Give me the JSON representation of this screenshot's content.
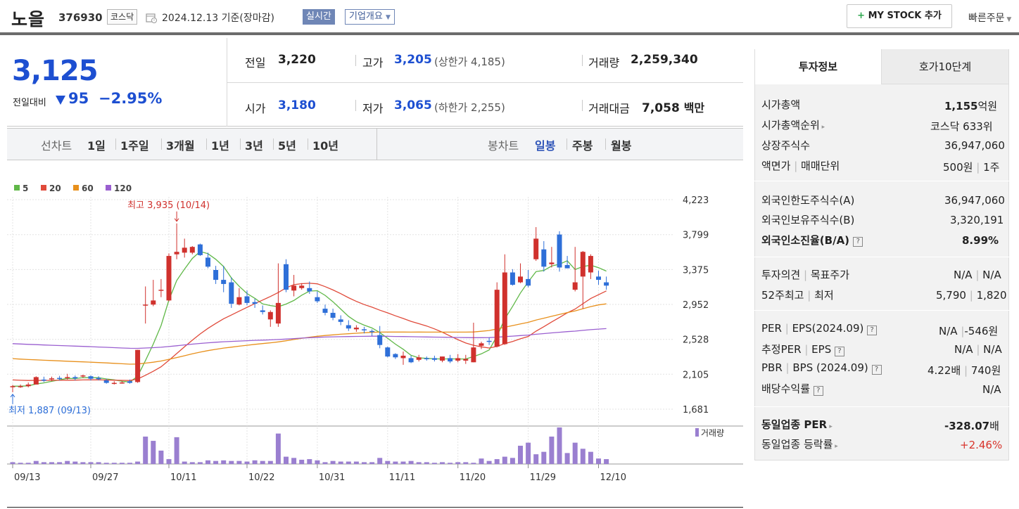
{
  "header": {
    "name": "노을",
    "code": "376930",
    "market": "코스닥",
    "date": "2024.12.13",
    "basis": "기준(장마감)",
    "realtime": "실시간",
    "corp_info": "기업개요",
    "my_stock": "MY STOCK 추가",
    "quick_order": "빠른주문"
  },
  "summary": {
    "price": "3,125",
    "change_label": "전일대비",
    "change": "95",
    "change_pct": "−2.95%",
    "prev_label": "전일",
    "prev": "3,220",
    "open_label": "시가",
    "open": "3,180",
    "high_label": "고가",
    "high": "3,205",
    "upper_limit": "(상한가 4,185)",
    "low_label": "저가",
    "low": "3,065",
    "lower_limit": "(하한가 2,255)",
    "volume_label": "거래량",
    "volume": "2,259,340",
    "amount_label": "거래대금",
    "amount": "7,058",
    "amount_unit": "백만"
  },
  "chart_tabs": {
    "line_label": "선차트",
    "line_periods": [
      "1일",
      "1주일",
      "3개월",
      "1년",
      "3년",
      "5년",
      "10년"
    ],
    "candle_label": "봉차트",
    "candle_periods": [
      "일봉",
      "주봉",
      "월봉"
    ]
  },
  "chart_data": {
    "type": "candlestick",
    "ma_legend": [
      {
        "name": "5",
        "color": "#60b848"
      },
      {
        "name": "20",
        "color": "#e04a3a"
      },
      {
        "name": "60",
        "color": "#e8901c"
      },
      {
        "name": "120",
        "color": "#9a5fd0"
      }
    ],
    "y_ticks": [
      "4,223",
      "3,799",
      "3,375",
      "2,952",
      "2,528",
      "2,105",
      "1,681"
    ],
    "ylim": [
      1681,
      4223
    ],
    "x_ticks": [
      "09/13",
      "09/27",
      "10/11",
      "10/22",
      "10/31",
      "11/11",
      "11/20",
      "11/29",
      "12/10"
    ],
    "x_tick_index": [
      0,
      10,
      20,
      30,
      39,
      48,
      57,
      66,
      75
    ],
    "high_annotation": "최고 3,935 (10/14)",
    "low_annotation": "최저 1,887 (09/13)",
    "volume_label": "거래량",
    "candles": [
      [
        1950,
        1975,
        1887,
        1960
      ],
      [
        1960,
        1980,
        1940,
        1960
      ],
      [
        1960,
        2005,
        1945,
        1980
      ],
      [
        1980,
        2080,
        1980,
        2070
      ],
      [
        2040,
        2075,
        2010,
        2030
      ],
      [
        2045,
        2075,
        2020,
        2055
      ],
      [
        2060,
        2085,
        2030,
        2050
      ],
      [
        2060,
        2110,
        2040,
        2070
      ],
      [
        2070,
        2090,
        2030,
        2055
      ],
      [
        2080,
        2100,
        2060,
        2090
      ],
      [
        2080,
        2090,
        2030,
        2050
      ],
      [
        2060,
        2080,
        2030,
        2045
      ],
      [
        2030,
        2050,
        1990,
        2000
      ],
      [
        2000,
        2020,
        1980,
        2000
      ],
      [
        2000,
        2020,
        1990,
        2005
      ],
      [
        2020,
        2040,
        1990,
        2000
      ],
      [
        2010,
        2400,
        2000,
        2400
      ],
      [
        2950,
        3170,
        2720,
        2950
      ],
      [
        2950,
        3250,
        2930,
        3000
      ],
      [
        3120,
        3260,
        3040,
        3130
      ],
      [
        3000,
        3570,
        2990,
        3540
      ],
      [
        3560,
        3935,
        3500,
        3590
      ],
      [
        3580,
        3750,
        3520,
        3640
      ],
      [
        3580,
        3660,
        3560,
        3650
      ],
      [
        3680,
        3690,
        3540,
        3550
      ],
      [
        3520,
        3580,
        3390,
        3410
      ],
      [
        3370,
        3420,
        3200,
        3250
      ],
      [
        3250,
        3420,
        3100,
        3200
      ],
      [
        3220,
        3280,
        2910,
        2960
      ],
      [
        2950,
        3150,
        2940,
        3040
      ],
      [
        3050,
        3120,
        2940,
        2970
      ],
      [
        2980,
        3020,
        2910,
        2960
      ],
      [
        2880,
        2940,
        2830,
        2860
      ],
      [
        2770,
        2880,
        2680,
        2860
      ],
      [
        2720,
        3450,
        2680,
        2970
      ],
      [
        3440,
        3500,
        3100,
        3130
      ],
      [
        3120,
        3310,
        3050,
        3180
      ],
      [
        3150,
        3210,
        3130,
        3180
      ],
      [
        3150,
        3230,
        3080,
        3110
      ],
      [
        3040,
        3110,
        2970,
        2990
      ],
      [
        2900,
        2950,
        2820,
        2850
      ],
      [
        2850,
        2900,
        2760,
        2790
      ],
      [
        2770,
        2820,
        2700,
        2740
      ],
      [
        2700,
        2760,
        2630,
        2660
      ],
      [
        2650,
        2700,
        2620,
        2670
      ],
      [
        2650,
        2680,
        2600,
        2640
      ],
      [
        2630,
        2650,
        2570,
        2620
      ],
      [
        2580,
        2690,
        2420,
        2460
      ],
      [
        2430,
        2440,
        2310,
        2320
      ],
      [
        2350,
        2360,
        2290,
        2310
      ],
      [
        2300,
        2380,
        2220,
        2330
      ],
      [
        2300,
        2330,
        2240,
        2250
      ],
      [
        2280,
        2340,
        2260,
        2310
      ],
      [
        2300,
        2320,
        2270,
        2290
      ],
      [
        2300,
        2330,
        2260,
        2280
      ],
      [
        2270,
        2320,
        2250,
        2320
      ],
      [
        2300,
        2340,
        2240,
        2260
      ],
      [
        2270,
        2350,
        2250,
        2300
      ],
      [
        2270,
        2340,
        2230,
        2290
      ],
      [
        2250,
        2730,
        2250,
        2430
      ],
      [
        2450,
        2500,
        2410,
        2480
      ],
      [
        2510,
        2550,
        2460,
        2500
      ],
      [
        2440,
        3220,
        2430,
        3130
      ],
      [
        2470,
        3560,
        2460,
        3340
      ],
      [
        3340,
        3380,
        3180,
        3190
      ],
      [
        3220,
        3450,
        3210,
        3290
      ],
      [
        3260,
        3370,
        3160,
        3180
      ],
      [
        3500,
        3890,
        3480,
        3750
      ],
      [
        3620,
        3720,
        3350,
        3410
      ],
      [
        3440,
        3650,
        3400,
        3460
      ],
      [
        3800,
        3840,
        3350,
        3400
      ],
      [
        3430,
        3540,
        3390,
        3390
      ],
      [
        3130,
        3650,
        3110,
        3220
      ],
      [
        3290,
        3600,
        2900,
        3590
      ],
      [
        3340,
        3560,
        3260,
        3540
      ],
      [
        3290,
        3360,
        3190,
        3250
      ],
      [
        3220,
        3290,
        3130,
        3180
      ]
    ],
    "volume": [
      3,
      2,
      2,
      5,
      3,
      3,
      3,
      5,
      4,
      3,
      3,
      3,
      2,
      2,
      2,
      2,
      4,
      45,
      38,
      22,
      8,
      44,
      4,
      3,
      3,
      6,
      5,
      6,
      5,
      5,
      4,
      6,
      5,
      5,
      50,
      12,
      10,
      7,
      8,
      6,
      3,
      5,
      4,
      4,
      4,
      3,
      3,
      10,
      5,
      4,
      4,
      5,
      3,
      3,
      2,
      3,
      2,
      3,
      3,
      2,
      9,
      5,
      8,
      12,
      10,
      30,
      35,
      16,
      20,
      45,
      60,
      18,
      35,
      25,
      20,
      9,
      8
    ]
  },
  "sidebar": {
    "tab_info": "투자정보",
    "tab_quote": "호가10단계",
    "mcap_label": "시가총액",
    "mcap_value": "1,155",
    "mcap_unit": "억원",
    "rank_label": "시가총액순위",
    "rank_value": "코스닥 633위",
    "shares_label": "상장주식수",
    "shares_value": "36,947,060",
    "face_label": "액면가",
    "unit_label": "매매단위",
    "face_value": "500원",
    "unit_value": "1주",
    "foreign_limit_label": "외국인한도주식수(A)",
    "foreign_limit": "36,947,060",
    "foreign_hold_label": "외국인보유주식수(B)",
    "foreign_hold": "3,320,191",
    "foreign_ratio_label": "외국인소진율(B/A)",
    "foreign_ratio": "8.99%",
    "opinion_label": "투자의견",
    "target_label": "목표주가",
    "opinion": "N/A",
    "target": "N/A",
    "w52_label": "52주최고",
    "w52_low_label": "최저",
    "w52_high": "5,790",
    "w52_low": "1,820",
    "per_label": "PER",
    "eps_label": "EPS(2024.09)",
    "per": "N/A",
    "eps": "-546원",
    "eper_label": "추정PER",
    "eeps_label": "EPS",
    "eper": "N/A",
    "eeps": "N/A",
    "pbr_label": "PBR",
    "bps_label": "BPS (2024.09)",
    "pbr": "4.22배",
    "bps": "740원",
    "div_label": "배당수익률",
    "div": "N/A",
    "ind_per_label": "동일업종 PER",
    "ind_per": "-328.07",
    "ind_per_unit": "배",
    "ind_chg_label": "동일업종 등락률",
    "ind_chg": "+2.46%",
    "help": "?"
  }
}
